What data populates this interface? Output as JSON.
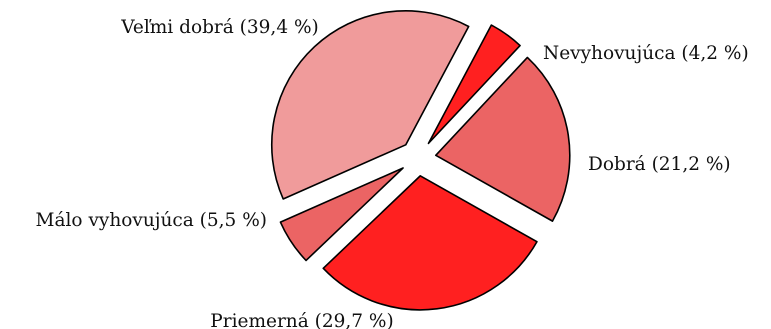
{
  "chart_data": {
    "type": "pie",
    "title": "",
    "labels": [
      "Nevyhovujúca (4,2 %)",
      "Dobrá (21,2 %)",
      "Priemerná (29,7 %)",
      "Málo vyhovujúca (5,5 %)",
      "Veľmi dobrá (39,4 %)"
    ],
    "categories": [
      "Nevyhovujúca",
      "Dobrá",
      "Priemerná",
      "Málo vyhovujúca",
      "Veľmi dobrá"
    ],
    "values": [
      4.2,
      21.2,
      29.7,
      5.5,
      39.4
    ],
    "colors": [
      "#ff2020",
      "#eb6464",
      "#ff2020",
      "#eb6464",
      "#f09b9b"
    ],
    "exploded": true,
    "legend": "none"
  }
}
